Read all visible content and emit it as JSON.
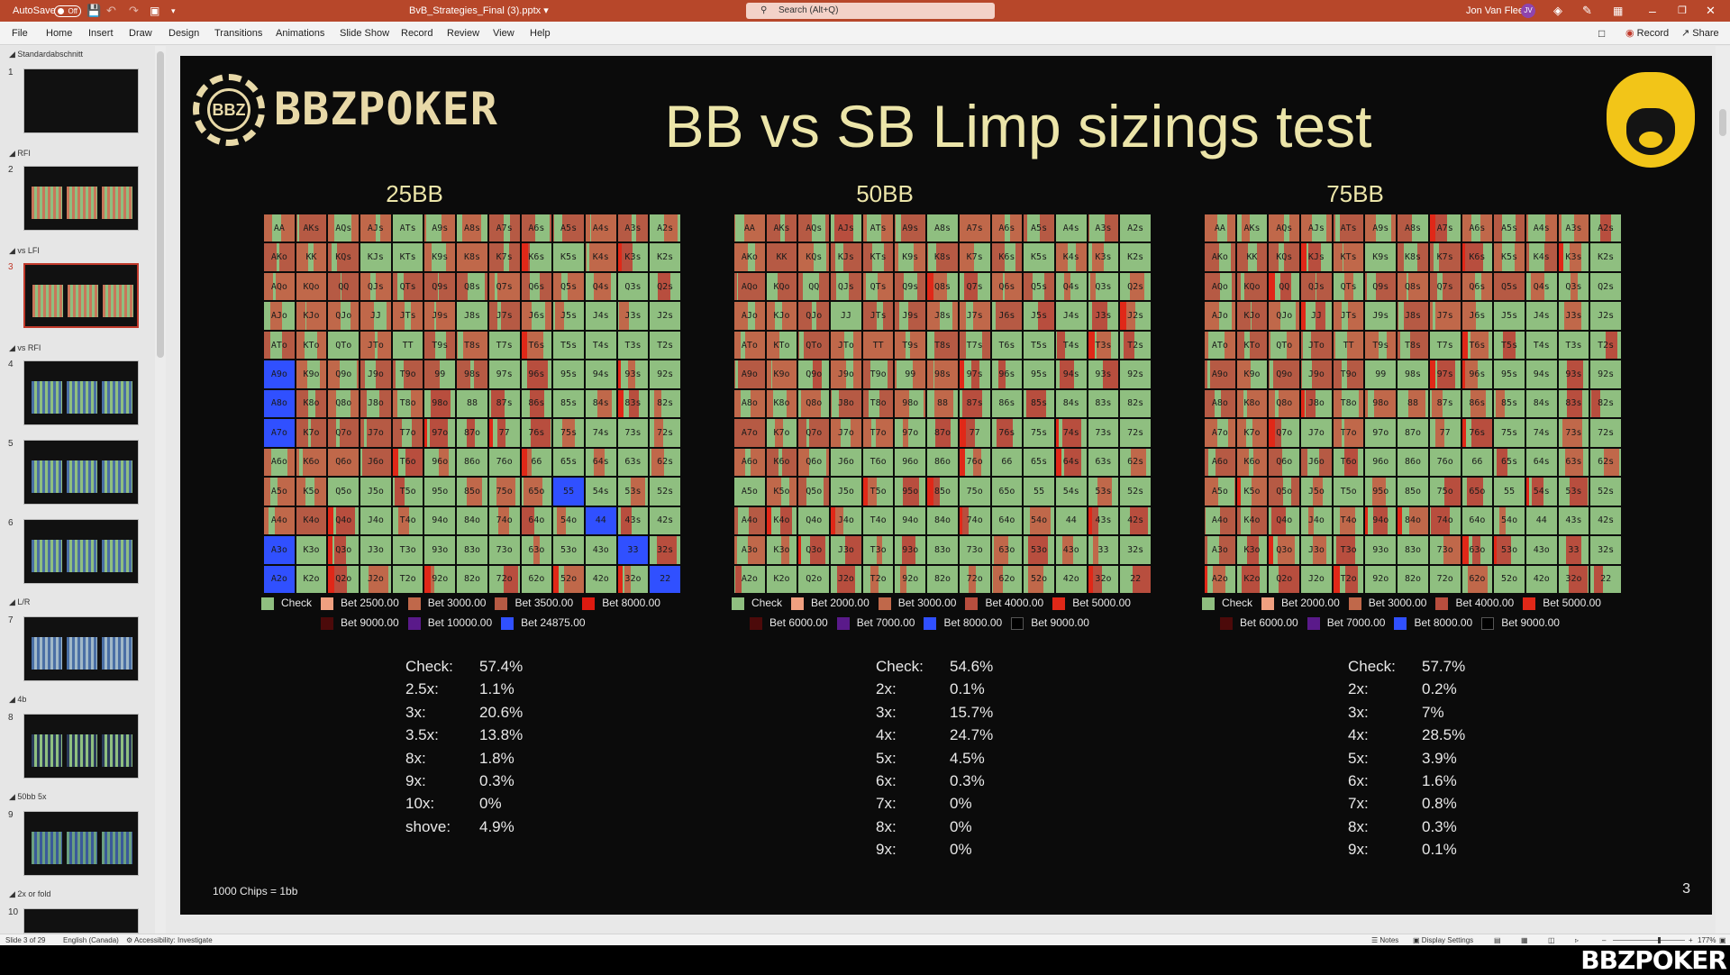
{
  "window": {
    "autosave_label": "AutoSave",
    "autosave_state": "Off",
    "filename": "BvB_Strategies_Final (3).pptx",
    "search_placeholder": "Search (Alt+Q)",
    "user_name": "Jon Van Fleet",
    "user_initials": "JV"
  },
  "ribbon": {
    "tabs": [
      "File",
      "Home",
      "Insert",
      "Draw",
      "Design",
      "Transitions",
      "Animations",
      "Slide Show",
      "Record",
      "Review",
      "View",
      "Help"
    ],
    "record_label": "Record",
    "share_label": "Share"
  },
  "sidebar": {
    "sections": [
      "Standardabschnitt",
      "RFI",
      "vs LFI",
      "vs RFI",
      "L/R",
      "4b",
      "50bb 5x",
      "2x or fold"
    ],
    "slide_numbers": [
      "1",
      "2",
      "3",
      "4",
      "5",
      "6",
      "7",
      "8",
      "9",
      "10"
    ],
    "selected_slide": 3
  },
  "slide": {
    "logo_text": "BBZPOKER",
    "logo_badge": "BBZ",
    "title": "BB vs SB Limp sizings test",
    "footnote": "1000 Chips = 1bb",
    "page_number": "3"
  },
  "colors": {
    "check": "#8fbf80",
    "bet2000": "#f0a080",
    "bet2500": "#f0a080",
    "bet3000": "#c0684a",
    "bet3500": "#b65a44",
    "bet4000": "#b84e3e",
    "bet5000": "#e02818",
    "bet6000": "#4c0a0a",
    "bet7000": "#5a1a8a",
    "bet8000": "#3050ff",
    "bet8000_25": "#dd1a10",
    "bet9000": "#000000",
    "bet9000_25": "#4c0a0a",
    "bet10000": "#5a1a8a",
    "bet24875": "#3050ff"
  },
  "charts": [
    {
      "title": "25BB",
      "legend_rows": [
        [
          {
            "label": "Check",
            "color": "#8fbf80"
          },
          {
            "label": "Bet 2500.00",
            "color": "#f0a080"
          },
          {
            "label": "Bet 3000.00",
            "color": "#c0684a"
          },
          {
            "label": "Bet 3500.00",
            "color": "#b65a44"
          },
          {
            "label": "Bet 8000.00",
            "color": "#dd1a10"
          }
        ],
        [
          {
            "label": "Bet 9000.00",
            "color": "#4c0a0a"
          },
          {
            "label": "Bet 10000.00",
            "color": "#5a1a8a"
          },
          {
            "label": "Bet 24875.00",
            "color": "#3050ff"
          }
        ]
      ],
      "stats": [
        {
          "label": "Check:",
          "value": "57.4%"
        },
        {
          "label": "2.5x:",
          "value": "1.1%"
        },
        {
          "label": "3x:",
          "value": "20.6%"
        },
        {
          "label": "3.5x:",
          "value": "13.8%"
        },
        {
          "label": "8x:",
          "value": "1.8%"
        },
        {
          "label": "9x:",
          "value": "0.3%"
        },
        {
          "label": "10x:",
          "value": "0%"
        },
        {
          "label": "shove:",
          "value": "4.9%"
        }
      ]
    },
    {
      "title": "50BB",
      "legend_rows": [
        [
          {
            "label": "Check",
            "color": "#8fbf80"
          },
          {
            "label": "Bet 2000.00",
            "color": "#f0a080"
          },
          {
            "label": "Bet 3000.00",
            "color": "#c0684a"
          },
          {
            "label": "Bet 4000.00",
            "color": "#b84e3e"
          },
          {
            "label": "Bet 5000.00",
            "color": "#e02818"
          }
        ],
        [
          {
            "label": "Bet 6000.00",
            "color": "#4c0a0a"
          },
          {
            "label": "Bet 7000.00",
            "color": "#5a1a8a"
          },
          {
            "label": "Bet 8000.00",
            "color": "#3050ff"
          },
          {
            "label": "Bet 9000.00",
            "color": "#000000"
          }
        ]
      ],
      "stats": [
        {
          "label": "Check:",
          "value": "54.6%"
        },
        {
          "label": "2x:",
          "value": "0.1%"
        },
        {
          "label": "3x:",
          "value": "15.7%"
        },
        {
          "label": "4x:",
          "value": "24.7%"
        },
        {
          "label": "5x:",
          "value": "4.5%"
        },
        {
          "label": "6x:",
          "value": "0.3%"
        },
        {
          "label": "7x:",
          "value": "0%"
        },
        {
          "label": "8x:",
          "value": "0%"
        },
        {
          "label": "9x:",
          "value": "0%"
        }
      ]
    },
    {
      "title": "75BB",
      "legend_rows": [
        [
          {
            "label": "Check",
            "color": "#8fbf80"
          },
          {
            "label": "Bet 2000.00",
            "color": "#f0a080"
          },
          {
            "label": "Bet 3000.00",
            "color": "#c0684a"
          },
          {
            "label": "Bet 4000.00",
            "color": "#b84e3e"
          },
          {
            "label": "Bet 5000.00",
            "color": "#e02818"
          }
        ],
        [
          {
            "label": "Bet 6000.00",
            "color": "#4c0a0a"
          },
          {
            "label": "Bet 7000.00",
            "color": "#5a1a8a"
          },
          {
            "label": "Bet 8000.00",
            "color": "#3050ff"
          },
          {
            "label": "Bet 9000.00",
            "color": "#000000"
          }
        ]
      ],
      "stats": [
        {
          "label": "Check:",
          "value": "57.7%"
        },
        {
          "label": "2x:",
          "value": "0.2%"
        },
        {
          "label": "3x:",
          "value": "7%"
        },
        {
          "label": "4x:",
          "value": "28.5%"
        },
        {
          "label": "5x:",
          "value": "3.9%"
        },
        {
          "label": "6x:",
          "value": "1.6%"
        },
        {
          "label": "7x:",
          "value": "0.8%"
        },
        {
          "label": "8x:",
          "value": "0.3%"
        },
        {
          "label": "9x:",
          "value": "0.1%"
        }
      ]
    }
  ],
  "hand_grid": {
    "ranks": [
      "A",
      "K",
      "Q",
      "J",
      "T",
      "9",
      "8",
      "7",
      "6",
      "5",
      "4",
      "3",
      "2"
    ],
    "special_cells_25bb": {
      "55": "#3050ff",
      "44": "#3050ff",
      "33": "#3050ff",
      "22": "#3050ff",
      "A9o": "#3050ff",
      "A8o": "#3050ff",
      "A7o": "#3050ff",
      "A3o": "#3050ff",
      "A2o": "#3050ff"
    }
  },
  "statusbar": {
    "slide_info": "Slide 3 of 29",
    "language": "English (Canada)",
    "accessibility": "Accessibility: Investigate",
    "notes": "Notes",
    "display_settings": "Display Settings",
    "zoom": "177%"
  },
  "watermark": "BBZPOKER"
}
